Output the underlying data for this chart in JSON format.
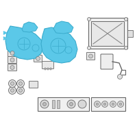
{
  "bg_color": "#ffffff",
  "hl": "#5bc8e8",
  "he": "#3aabcc",
  "oc": "#999999",
  "dc": "#666666",
  "lc": "#888888",
  "fig_width": 2.0,
  "fig_height": 2.0,
  "dpi": 100
}
